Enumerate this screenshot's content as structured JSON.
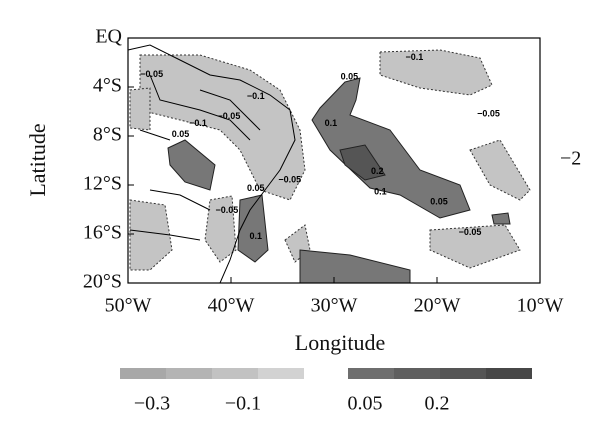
{
  "chart_data": {
    "type": "map",
    "xlabel": "Longitude",
    "ylabel": "Latitude",
    "side_label": "−2",
    "xlim": [
      -50,
      -10
    ],
    "ylim": [
      -20,
      0
    ],
    "xticks": [
      {
        "value": -50,
        "label": "50°W"
      },
      {
        "value": -40,
        "label": "40°W"
      },
      {
        "value": -30,
        "label": "30°W"
      },
      {
        "value": -20,
        "label": "20°W"
      },
      {
        "value": -10,
        "label": "10°W"
      }
    ],
    "yticks": [
      {
        "value": 0,
        "label": "EQ"
      },
      {
        "value": -4,
        "label": "4°S"
      },
      {
        "value": -8,
        "label": "8°S"
      },
      {
        "value": -12,
        "label": "12°S"
      },
      {
        "value": -16,
        "label": "16°S"
      },
      {
        "value": -20,
        "label": "20°S"
      }
    ],
    "contour_labels": [
      {
        "text": "−0.1",
        "x": -22.2,
        "y": -1.6
      },
      {
        "text": "−0.05",
        "x": -47.7,
        "y": -3.0
      },
      {
        "text": "−0.1",
        "x": -37.6,
        "y": -4.8
      },
      {
        "text": "−0.1",
        "x": -43.2,
        "y": -7.0
      },
      {
        "text": "−0.05",
        "x": -40.2,
        "y": -6.4
      },
      {
        "text": "−0.05",
        "x": -15.0,
        "y": -6.2
      },
      {
        "text": "0.05",
        "x": -28.5,
        "y": -3.2
      },
      {
        "text": "0.1",
        "x": -30.3,
        "y": -7.0
      },
      {
        "text": "0.05",
        "x": -44.9,
        "y": -7.9
      },
      {
        "text": "0.2",
        "x": -25.8,
        "y": -10.9
      },
      {
        "text": "0.1",
        "x": -25.5,
        "y": -12.6
      },
      {
        "text": "0.05",
        "x": -19.8,
        "y": -13.4
      },
      {
        "text": "−0.05",
        "x": -34.3,
        "y": -11.6
      },
      {
        "text": "0.05",
        "x": -37.6,
        "y": -12.3
      },
      {
        "text": "−0.05",
        "x": -40.4,
        "y": -14.1
      },
      {
        "text": "0.1",
        "x": -37.6,
        "y": -16.2
      },
      {
        "text": "−0.05",
        "x": -16.8,
        "y": -15.9
      }
    ],
    "colorbar": {
      "colors": [
        "#a8a8a8",
        "#b4b4b4",
        "#c2c2c2",
        "#d2d2d2",
        "#6e6e6e",
        "#5f5f5f",
        "#555555",
        "#474747"
      ],
      "labels": [
        "−0.3",
        "−0.1",
        "0.05",
        "0.2"
      ]
    }
  }
}
